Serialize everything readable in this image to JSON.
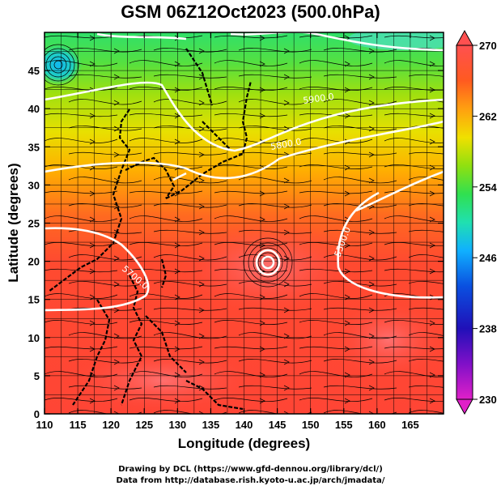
{
  "title": "GSM 06Z12Oct2023 (500.0hPa)",
  "xlabel": "Longitude (degrees)",
  "ylabel": "Latitude  (degrees)",
  "credit_line1": "Drawing by DCL (https://www.gfd-dennou.org/library/dcl/)",
  "credit_line2": "Data from http://database.rish.kyoto-u.ac.jp/arch/jmadata/",
  "map": {
    "lon_range": [
      110,
      170
    ],
    "lat_range": [
      0,
      50
    ],
    "x_ticks": [
      110,
      115,
      120,
      125,
      130,
      135,
      140,
      145,
      150,
      155,
      160,
      165
    ],
    "y_ticks": [
      0,
      5,
      10,
      15,
      20,
      25,
      30,
      35,
      40,
      45
    ],
    "grid_spacing_deg": 2.5,
    "variable": "temperature (K) shaded, 500hPa streamlines, geopotential height contours",
    "contour_labels": [
      "5500.0",
      "5700.0",
      "5800.0",
      "5900.0"
    ],
    "colorbar": {
      "ticks": [
        230,
        238,
        246,
        254,
        262,
        270
      ],
      "colors": [
        "#e020c8",
        "#4010c0",
        "#0a40d8",
        "#10c0ff",
        "#30e090",
        "#40d020",
        "#c0e000",
        "#ffd000",
        "#ff8020",
        "#ff4030",
        "#ff5a50"
      ]
    }
  }
}
